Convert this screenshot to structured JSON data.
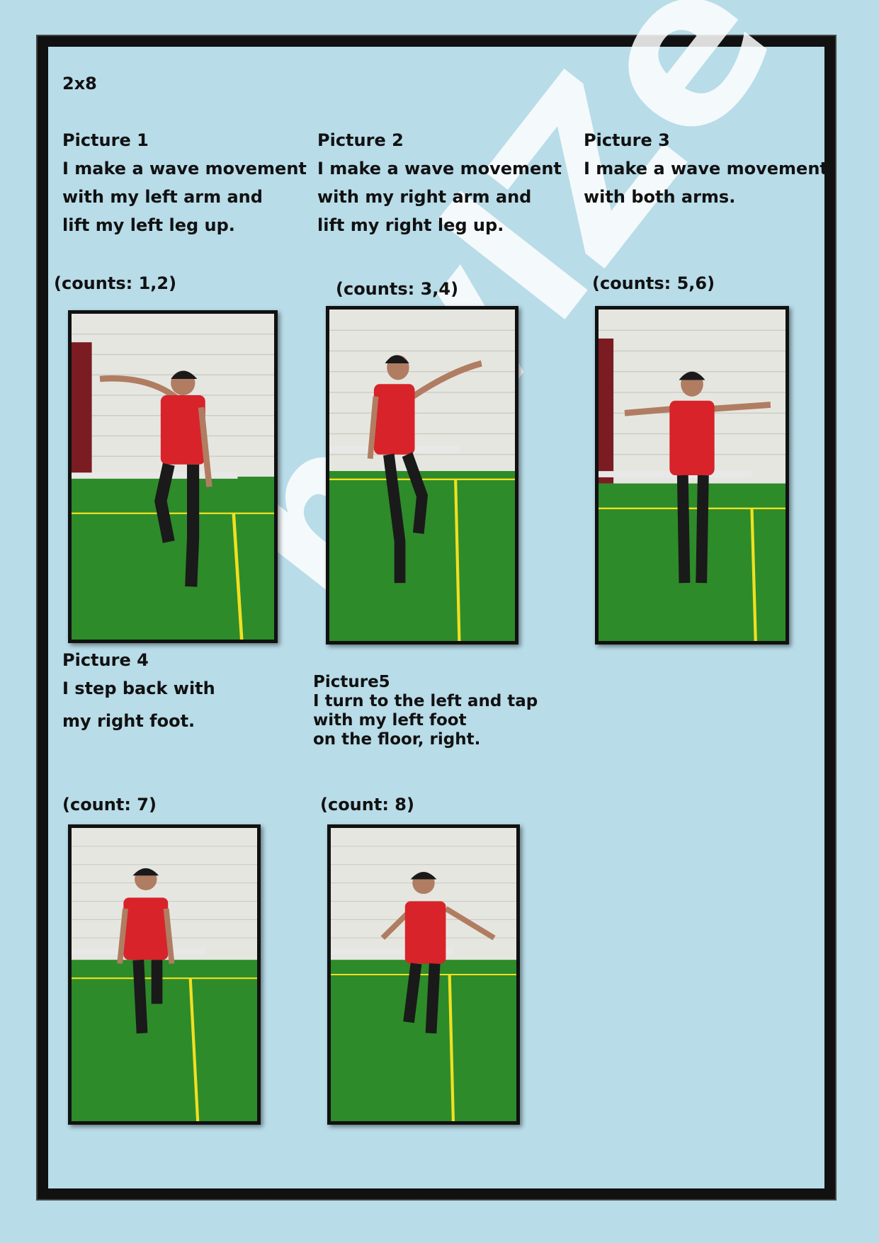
{
  "heading": "2x8",
  "colors": {
    "background": "#b8dce8",
    "frame": "#111111",
    "shirt": "#d8232a",
    "floor": "#2e8b2a",
    "wall": "#e6e6e1",
    "line": "#f0e020"
  },
  "captions": [
    {
      "title": "Picture 1",
      "lines": [
        "I make a wave movement",
        "with my left arm and",
        "lift my left leg up."
      ],
      "counts": "(counts: 1,2)"
    },
    {
      "title": "Picture 2",
      "lines": [
        "I make a wave movement",
        " with my right arm and",
        "lift my right leg up."
      ],
      "counts": "(counts: 3,4)"
    },
    {
      "title": "Picture 3",
      "lines": [
        "I make a wave movement",
        "with both arms."
      ],
      "counts": "(counts: 5,6)"
    },
    {
      "title": "Picture 4",
      "lines": [
        "I step back with",
        "my right foot."
      ],
      "counts": "(count: 7)"
    },
    {
      "title": "Picture5",
      "lines": [
        "I turn to the left and tap",
        "with my left foot",
        "on the floor, right."
      ],
      "counts": "(count: 8)"
    }
  ],
  "watermark": "mvlZe"
}
